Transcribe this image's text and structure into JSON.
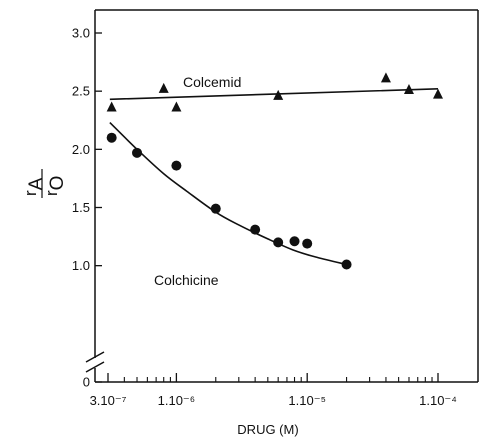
{
  "chart_data": {
    "type": "scatter",
    "x_scale": "log",
    "xlabel": "DRUG (M)",
    "xlim": [
      3e-07,
      0.00012
    ],
    "ylim": [
      0,
      3.1
    ],
    "x_ticks": [
      {
        "value": 3e-07,
        "label": "3.10⁻⁷"
      },
      {
        "value": 1e-06,
        "label": "1.10⁻⁶"
      },
      {
        "value": 1e-05,
        "label": "1.10⁻⁵"
      },
      {
        "value": 0.0001,
        "label": "1.10⁻⁴"
      }
    ],
    "y_ticks": [
      {
        "value": 0,
        "label": "0"
      },
      {
        "value": 1.0,
        "label": "1.0"
      },
      {
        "value": 1.5,
        "label": "1.5"
      },
      {
        "value": 2.0,
        "label": "2.0"
      },
      {
        "value": 2.5,
        "label": "2.5"
      },
      {
        "value": 3.0,
        "label": "3.0"
      }
    ],
    "ylabel": {
      "num_base": "r",
      "num_sub": "A",
      "den_base": "r",
      "den_sub": "O"
    },
    "axis_break": true,
    "grid": false,
    "series": [
      {
        "name": "Colcemid",
        "marker": "triangle",
        "points": [
          [
            3.2e-07,
            2.36
          ],
          [
            8e-07,
            2.52
          ],
          [
            1e-06,
            2.36
          ],
          [
            6e-06,
            2.46
          ],
          [
            4e-05,
            2.61
          ],
          [
            6e-05,
            2.51
          ],
          [
            0.0001,
            2.47
          ]
        ],
        "fit": [
          [
            3.1e-07,
            2.43
          ],
          [
            0.0001,
            2.52
          ]
        ]
      },
      {
        "name": "Colchicine",
        "marker": "circle",
        "points": [
          [
            3.2e-07,
            2.1
          ],
          [
            5e-07,
            1.97
          ],
          [
            1e-06,
            1.86
          ],
          [
            2e-06,
            1.49
          ],
          [
            4e-06,
            1.31
          ],
          [
            6e-06,
            1.2
          ],
          [
            8e-06,
            1.21
          ],
          [
            1e-05,
            1.19
          ],
          [
            2e-05,
            1.01
          ]
        ],
        "fit": [
          [
            3.1e-07,
            2.23
          ],
          [
            5e-07,
            2.0
          ],
          [
            8e-07,
            1.79
          ],
          [
            1.2e-06,
            1.64
          ],
          [
            2e-06,
            1.46
          ],
          [
            3e-06,
            1.35
          ],
          [
            5e-06,
            1.23
          ],
          [
            8e-06,
            1.13
          ],
          [
            1.2e-05,
            1.07
          ],
          [
            2e-05,
            1.01
          ]
        ]
      }
    ]
  }
}
